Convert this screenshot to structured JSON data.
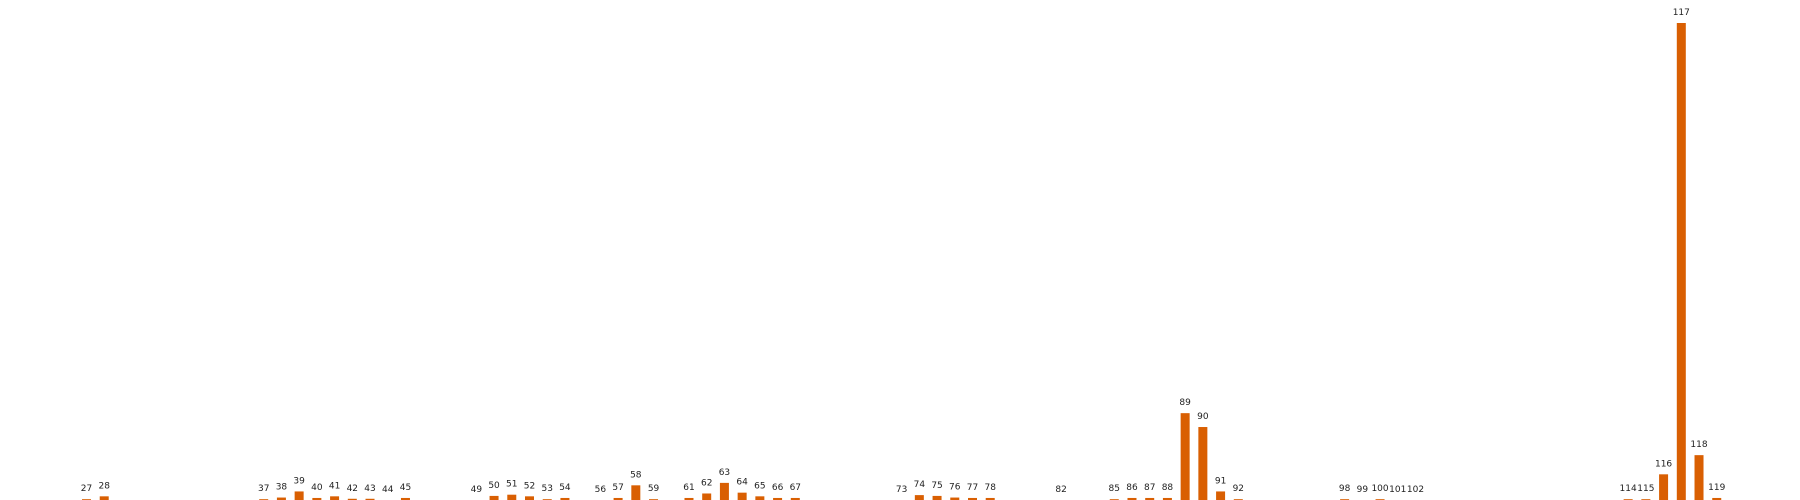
{
  "chart_data": {
    "type": "bar",
    "title": "",
    "xlabel": "",
    "ylabel": "",
    "grid": false,
    "legend": "none",
    "bar_color": "#d95f02",
    "categories": [
      "27",
      "28",
      "37",
      "38",
      "39",
      "40",
      "41",
      "42",
      "43",
      "44",
      "45",
      "49",
      "50",
      "51",
      "52",
      "53",
      "54",
      "56",
      "57",
      "58",
      "59",
      "61",
      "62",
      "63",
      "64",
      "65",
      "66",
      "67",
      "73",
      "74",
      "75",
      "76",
      "77",
      "78",
      "82",
      "85",
      "86",
      "87",
      "88",
      "89",
      "90",
      "91",
      "92",
      "98",
      "99",
      "100",
      "101",
      "102",
      "114",
      "115",
      "116",
      "117",
      "118",
      "119"
    ],
    "values": [
      0.2,
      0.9,
      0.2,
      0.6,
      2.1,
      0.5,
      0.9,
      0.3,
      0.3,
      0.0,
      0.5,
      0.0,
      1.0,
      1.3,
      0.9,
      0.2,
      0.5,
      0.0,
      0.5,
      3.6,
      0.2,
      0.5,
      1.6,
      4.2,
      1.8,
      0.9,
      0.5,
      0.5,
      0.0,
      1.2,
      1.0,
      0.6,
      0.5,
      0.5,
      0.0,
      0.2,
      0.5,
      0.5,
      0.5,
      21.3,
      17.9,
      2.1,
      0.2,
      0.2,
      0.0,
      0.2,
      0.0,
      0.0,
      0.2,
      0.2,
      6.3,
      117.0,
      11.0,
      0.5
    ],
    "ylim": [
      0,
      117
    ]
  }
}
